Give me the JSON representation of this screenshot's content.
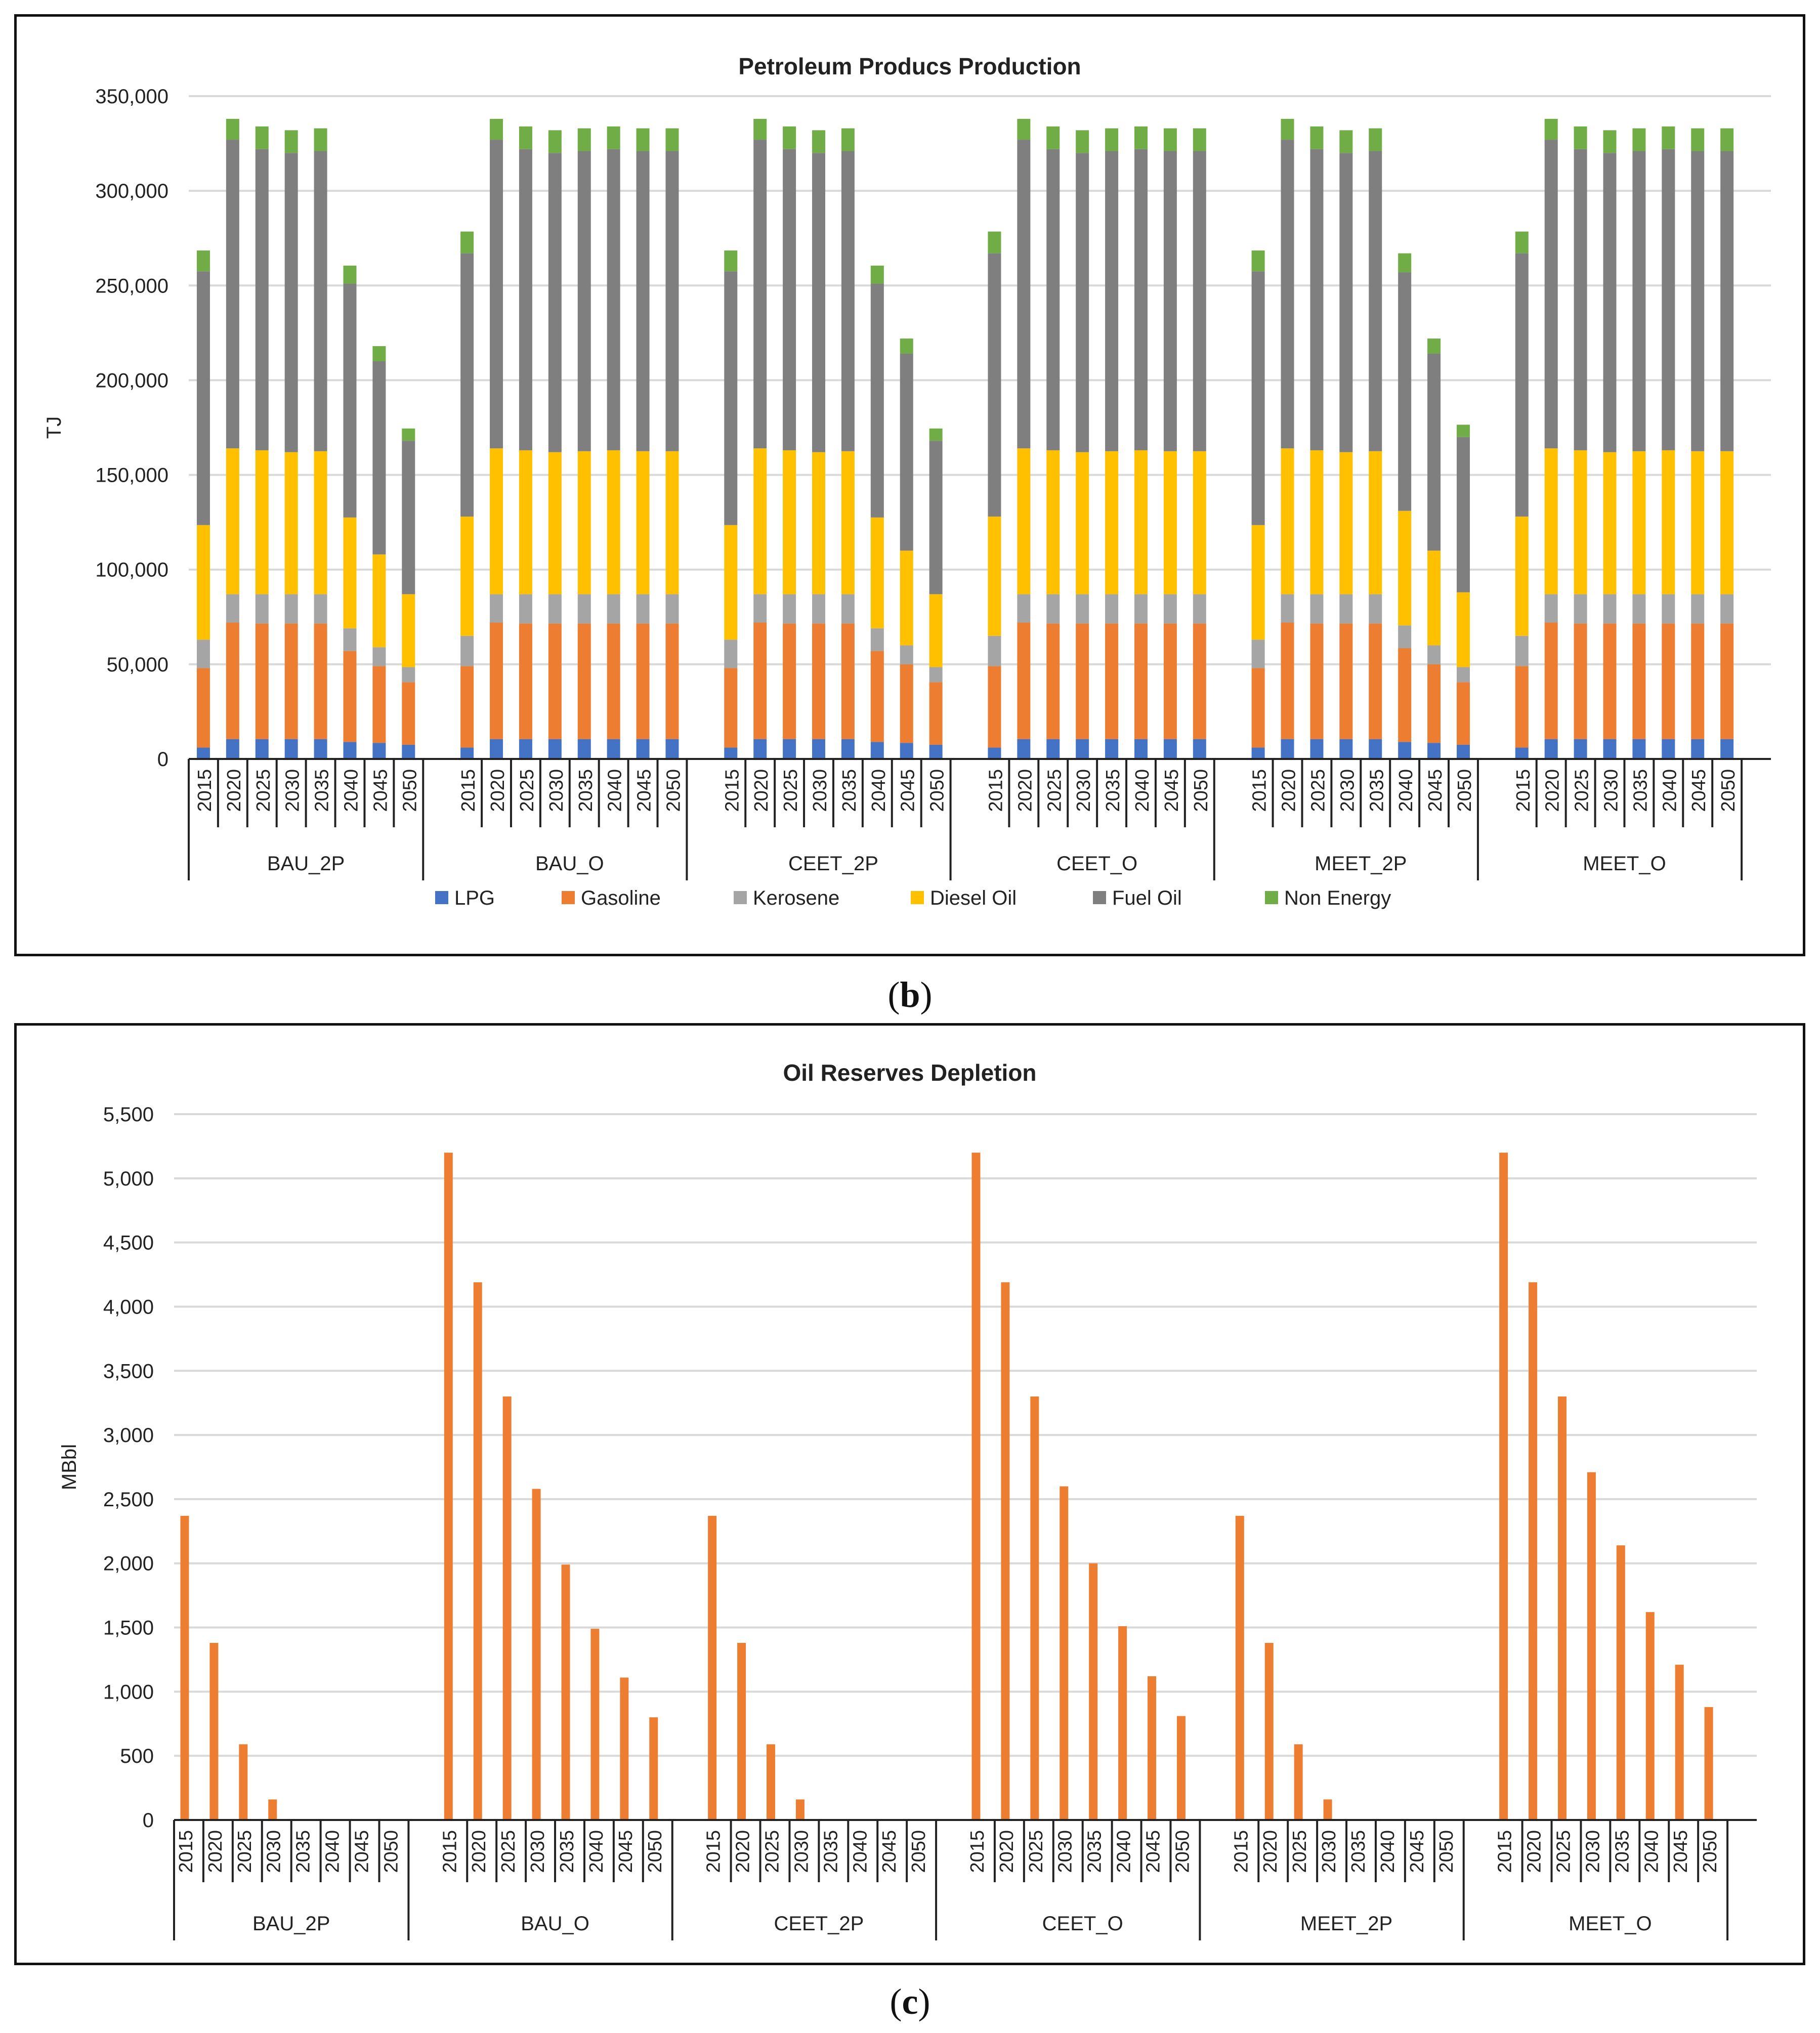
{
  "captions": {
    "b": "b",
    "c": "c"
  },
  "chart_data": [
    {
      "type": "bar",
      "stacked": true,
      "title": "Petroleum Producs Production",
      "ylabel": "TJ",
      "xlabel": "",
      "ylim": [
        0,
        350000
      ],
      "yticks": [
        0,
        50000,
        100000,
        150000,
        200000,
        250000,
        300000,
        350000
      ],
      "ytick_labels": [
        "0",
        "50,000",
        "100,000",
        "150,000",
        "200,000",
        "250,000",
        "300,000",
        "350,000"
      ],
      "grid": true,
      "legend_position": "bottom",
      "groups": [
        "BAU_2P",
        "BAU_O",
        "CEET_2P",
        "CEET_O",
        "MEET_2P",
        "MEET_O"
      ],
      "years": [
        "2015",
        "2020",
        "2025",
        "2030",
        "2035",
        "2040",
        "2045",
        "2050"
      ],
      "series": [
        {
          "name": "LPG",
          "color": "#4472C4",
          "values": [
            [
              6000,
              10500,
              10500,
              10500,
              10500,
              9000,
              8500,
              7500
            ],
            [
              6000,
              10500,
              10500,
              10500,
              10500,
              10500,
              10500,
              10500
            ],
            [
              6000,
              10500,
              10500,
              10500,
              10500,
              9000,
              8500,
              7500
            ],
            [
              6000,
              10500,
              10500,
              10500,
              10500,
              10500,
              10500,
              10500
            ],
            [
              6000,
              10500,
              10500,
              10500,
              10500,
              9000,
              8500,
              7500
            ],
            [
              6000,
              10500,
              10500,
              10500,
              10500,
              10500,
              10500,
              10500
            ]
          ]
        },
        {
          "name": "Gasoline",
          "color": "#ED7D31",
          "values": [
            [
              42000,
              61500,
              61000,
              61000,
              61000,
              48000,
              40500,
              33000
            ],
            [
              43000,
              61500,
              61000,
              61000,
              61000,
              61000,
              61000,
              61000
            ],
            [
              42000,
              61500,
              61000,
              61000,
              61000,
              48000,
              41500,
              33000
            ],
            [
              43000,
              61500,
              61000,
              61000,
              61000,
              61000,
              61000,
              61000
            ],
            [
              42000,
              61500,
              61000,
              61000,
              61000,
              49500,
              41500,
              33000
            ],
            [
              43000,
              61500,
              61000,
              61000,
              61000,
              61000,
              61000,
              61000
            ]
          ]
        },
        {
          "name": "Kerosene",
          "color": "#A5A5A5",
          "values": [
            [
              15000,
              15000,
              15500,
              15500,
              15500,
              12000,
              10000,
              8000
            ],
            [
              16000,
              15000,
              15500,
              15500,
              15500,
              15500,
              15500,
              15500
            ],
            [
              15000,
              15000,
              15500,
              15500,
              15500,
              12000,
              10000,
              8000
            ],
            [
              16000,
              15000,
              15500,
              15500,
              15500,
              15500,
              15500,
              15500
            ],
            [
              15000,
              15000,
              15500,
              15500,
              15500,
              12000,
              10000,
              8000
            ],
            [
              16000,
              15000,
              15500,
              15500,
              15500,
              15500,
              15500,
              15500
            ]
          ]
        },
        {
          "name": "Diesel Oil",
          "color": "#FFC000",
          "values": [
            [
              60500,
              77000,
              76000,
              75000,
              75500,
              58500,
              49000,
              38500
            ],
            [
              63000,
              77000,
              76000,
              75000,
              75500,
              76000,
              75500,
              75500
            ],
            [
              60500,
              77000,
              76000,
              75000,
              75500,
              58500,
              50000,
              38500
            ],
            [
              63000,
              77000,
              76000,
              75000,
              75500,
              76000,
              75500,
              75500
            ],
            [
              60500,
              77000,
              76000,
              75000,
              75500,
              60500,
              50000,
              39500
            ],
            [
              63000,
              77000,
              76000,
              75000,
              75500,
              76000,
              75500,
              75500
            ]
          ]
        },
        {
          "name": "Fuel Oil",
          "color": "#7F7F7F",
          "values": [
            [
              134000,
              163000,
              159000,
              158000,
              158500,
              123500,
              102000,
              81000
            ],
            [
              139000,
              163000,
              159000,
              158000,
              158500,
              159000,
              158500,
              158500
            ],
            [
              134000,
              163000,
              159000,
              158000,
              158500,
              123500,
              104000,
              81000
            ],
            [
              139000,
              163000,
              159000,
              158000,
              158500,
              159000,
              158500,
              158500
            ],
            [
              134000,
              163000,
              159000,
              158000,
              158500,
              126000,
              104000,
              82000
            ],
            [
              139000,
              163000,
              159000,
              158000,
              158500,
              159000,
              158500,
              158500
            ]
          ]
        },
        {
          "name": "Non Energy",
          "color": "#70AD47",
          "values": [
            [
              11000,
              11000,
              12000,
              12000,
              12000,
              9500,
              8000,
              6500
            ],
            [
              11500,
              11000,
              12000,
              12000,
              12000,
              12000,
              12000,
              12000
            ],
            [
              11000,
              11000,
              12000,
              12000,
              12000,
              9500,
              8000,
              6500
            ],
            [
              11500,
              11000,
              12000,
              12000,
              12000,
              12000,
              12000,
              12000
            ],
            [
              11000,
              11000,
              12000,
              12000,
              12000,
              10000,
              8000,
              6500
            ],
            [
              11500,
              11000,
              12000,
              12000,
              12000,
              12000,
              12000,
              12000
            ]
          ]
        }
      ]
    },
    {
      "type": "bar",
      "title": "Oil Reserves Depletion",
      "ylabel": "MBbl",
      "xlabel": "",
      "ylim": [
        0,
        5500
      ],
      "yticks": [
        0,
        500,
        1000,
        1500,
        2000,
        2500,
        3000,
        3500,
        4000,
        4500,
        5000,
        5500
      ],
      "ytick_labels": [
        "0",
        "500",
        "1,000",
        "1,500",
        "2,000",
        "2,500",
        "3,000",
        "3,500",
        "4,000",
        "4,500",
        "5,000",
        "5,500"
      ],
      "grid": true,
      "bar_color": "#ED7D31",
      "groups": [
        "BAU_2P",
        "BAU_O",
        "CEET_2P",
        "CEET_O",
        "MEET_2P",
        "MEET_O"
      ],
      "years": [
        "2015",
        "2020",
        "2025",
        "2030",
        "2035",
        "2040",
        "2045",
        "2050"
      ],
      "values": [
        [
          2370,
          1380,
          590,
          160,
          0,
          0,
          0,
          0
        ],
        [
          5200,
          4190,
          3300,
          2580,
          1990,
          1490,
          1110,
          800
        ],
        [
          2370,
          1380,
          590,
          160,
          0,
          0,
          0,
          0
        ],
        [
          5200,
          4190,
          3300,
          2600,
          2000,
          1510,
          1120,
          810
        ],
        [
          2370,
          1380,
          590,
          160,
          0,
          0,
          0,
          0
        ],
        [
          5200,
          4190,
          3300,
          2710,
          2140,
          1620,
          1210,
          880
        ]
      ]
    }
  ]
}
